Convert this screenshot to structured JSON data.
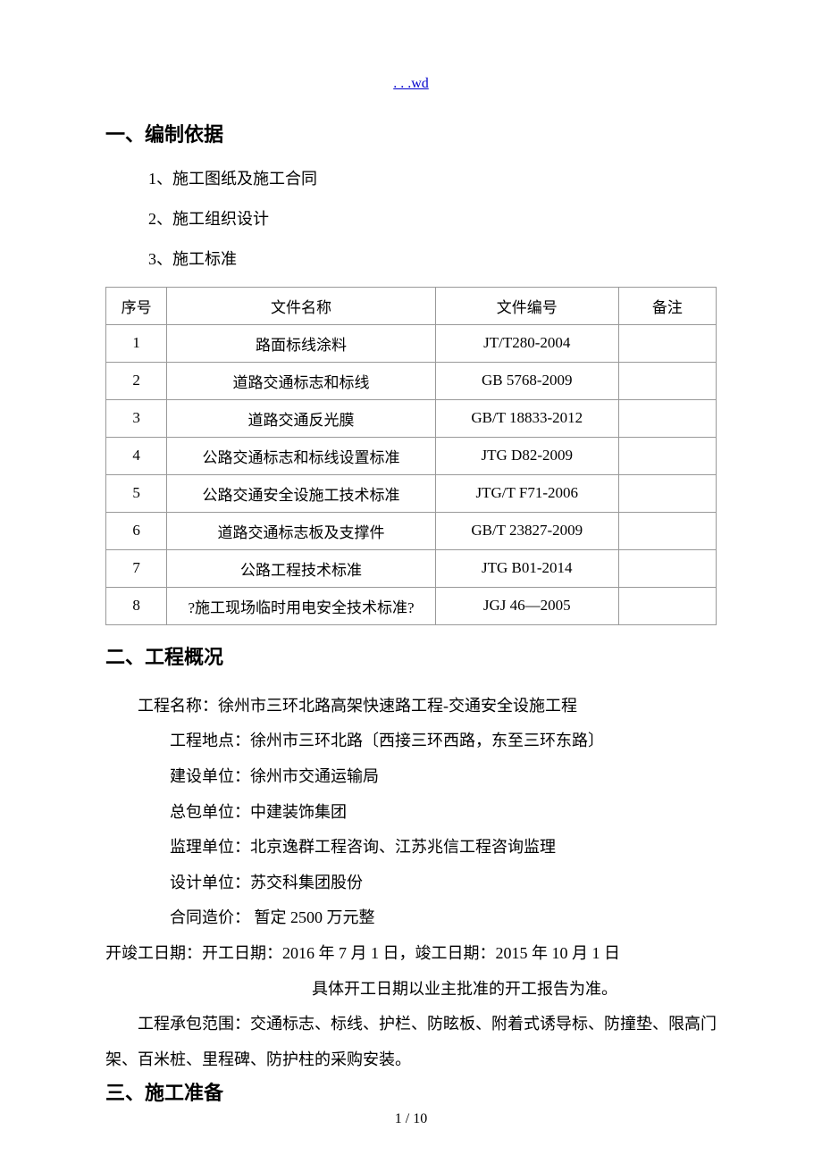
{
  "header": {
    "link_text": ". . .wd"
  },
  "sections": {
    "s1": {
      "heading": "一、编制依据",
      "items": [
        "1、施工图纸及施工合同",
        "2、施工组织设计",
        "3、施工标准"
      ]
    },
    "s2": {
      "heading": "二、工程概况"
    },
    "s3": {
      "heading": "三、施工准备"
    }
  },
  "standards_table": {
    "columns": [
      "序号",
      "文件名称",
      "文件编号",
      "备注"
    ],
    "rows": [
      [
        "1",
        "路面标线涂料",
        "JT/T280-2004",
        ""
      ],
      [
        "2",
        "道路交通标志和标线",
        "GB 5768-2009",
        ""
      ],
      [
        "3",
        "道路交通反光膜",
        "GB/T 18833-2012",
        ""
      ],
      [
        "4",
        "公路交通标志和标线设置标准",
        "JTG D82-2009",
        ""
      ],
      [
        "5",
        "公路交通安全设施工技术标准",
        "JTG/T F71-2006",
        ""
      ],
      [
        "6",
        "道路交通标志板及支撑件",
        "GB/T 23827-2009",
        ""
      ],
      [
        "7",
        "公路工程技术标准",
        "JTG B01-2014",
        ""
      ],
      [
        "8",
        "?施工现场临时用电安全技术标准?",
        "JGJ 46—2005",
        ""
      ]
    ]
  },
  "project_info": {
    "line1": "工程名称：徐州市三环北路高架快速路工程-交通安全设施工程",
    "line2": "工程地点：徐州市三环北路〔西接三环西路，东至三环东路〕",
    "line3": "建设单位：徐州市交通运输局",
    "line4": "总包单位：中建装饰集团",
    "line5": "监理单位：北京逸群工程咨询、江苏兆信工程咨询监理",
    "line6": "设计单位：苏交科集团股份",
    "line7": "合同造价： 暂定 2500 万元整",
    "line8": "开竣工日期：开工日期：2016 年 7 月 1 日，竣工日期：2015 年 10 月 1 日",
    "line9": "具体开工日期以业主批准的开工报告为准。",
    "line10": "工程承包范围：交通标志、标线、护栏、防眩板、附着式诱导标、防撞垫、限高门架、百米桩、里程碑、防护柱的采购安装。"
  },
  "pagination": {
    "text": "1 / 10"
  }
}
